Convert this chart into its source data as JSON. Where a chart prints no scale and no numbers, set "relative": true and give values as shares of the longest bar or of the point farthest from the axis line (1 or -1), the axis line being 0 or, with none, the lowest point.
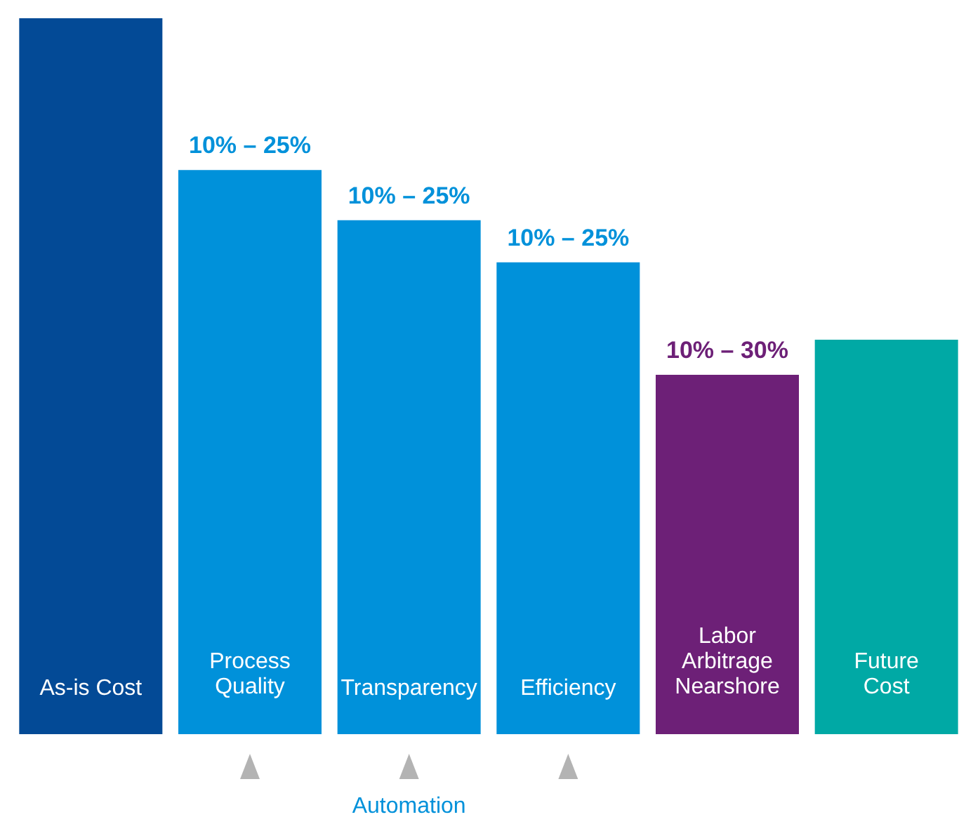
{
  "chart_data": {
    "type": "bar",
    "relative": true,
    "categories": [
      "As-is Cost",
      "Process Quality",
      "Transparency",
      "Efficiency",
      "Labor Arbitrage Nearshore",
      "Future Cost"
    ],
    "values": [
      1,
      0.788,
      0.718,
      0.659,
      0.502,
      0.551
    ],
    "colors": [
      "#034a96",
      "#0091da",
      "#0091da",
      "#0091da",
      "#6d2077",
      "#00a9a5"
    ],
    "annotations": [
      {
        "text": "10% – 25%",
        "x": "Process Quality",
        "y": 0.788
      },
      {
        "text": "10% – 25%",
        "x": "Transparency",
        "y": 0.718
      },
      {
        "text": "10% – 25%",
        "x": "Efficiency",
        "y": 0.659
      },
      {
        "text": "10% – 30%",
        "x": "Labor Arbitrage Nearshore",
        "y": 0.502
      },
      "Automation"
    ],
    "grid": false
  }
}
